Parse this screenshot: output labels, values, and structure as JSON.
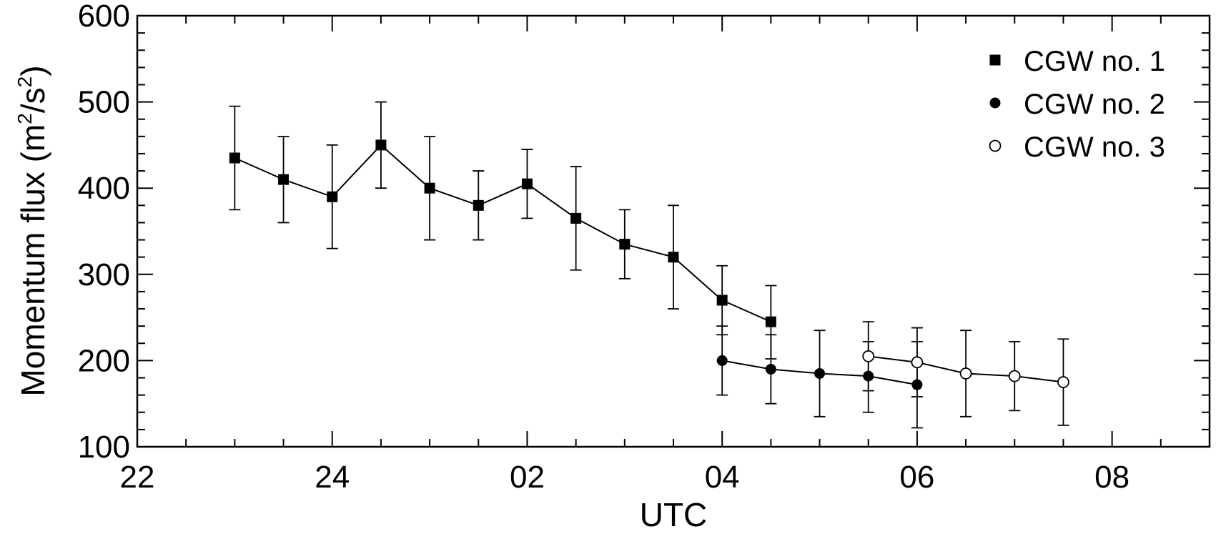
{
  "chart_data": {
    "type": "line",
    "xlabel": "UTC",
    "ylabel_main": "Momentum flux (m",
    "ylabel_sup1": "2",
    "ylabel_mid": "/s",
    "ylabel_sup2": "2",
    "ylabel_end": ")",
    "x_hours_since_22": true,
    "xlim": [
      0,
      11
    ],
    "ylim": [
      100,
      600
    ],
    "x_ticks": [
      {
        "value": 0,
        "label": "22"
      },
      {
        "value": 2,
        "label": "24"
      },
      {
        "value": 4,
        "label": "02"
      },
      {
        "value": 6,
        "label": "04"
      },
      {
        "value": 8,
        "label": "06"
      },
      {
        "value": 10,
        "label": "08"
      }
    ],
    "y_ticks": [
      {
        "value": 100,
        "label": "100"
      },
      {
        "value": 200,
        "label": "200"
      },
      {
        "value": 300,
        "label": "300"
      },
      {
        "value": 400,
        "label": "400"
      },
      {
        "value": 500,
        "label": "500"
      },
      {
        "value": 600,
        "label": "600"
      }
    ],
    "legend_position": "top-right",
    "series": [
      {
        "name": "CGW no. 1",
        "marker": "filled-square",
        "points": [
          {
            "x": 1.0,
            "y": 435,
            "lo": 375,
            "hi": 495
          },
          {
            "x": 1.5,
            "y": 410,
            "lo": 360,
            "hi": 460
          },
          {
            "x": 2.0,
            "y": 390,
            "lo": 330,
            "hi": 450
          },
          {
            "x": 2.5,
            "y": 450,
            "lo": 400,
            "hi": 500
          },
          {
            "x": 3.0,
            "y": 400,
            "lo": 340,
            "hi": 460
          },
          {
            "x": 3.5,
            "y": 380,
            "lo": 340,
            "hi": 420
          },
          {
            "x": 4.0,
            "y": 405,
            "lo": 365,
            "hi": 445
          },
          {
            "x": 4.5,
            "y": 365,
            "lo": 305,
            "hi": 425
          },
          {
            "x": 5.0,
            "y": 335,
            "lo": 295,
            "hi": 375
          },
          {
            "x": 5.5,
            "y": 320,
            "lo": 260,
            "hi": 380
          },
          {
            "x": 6.0,
            "y": 270,
            "lo": 230,
            "hi": 310
          },
          {
            "x": 6.5,
            "y": 245,
            "lo": 202,
            "hi": 287
          }
        ]
      },
      {
        "name": "CGW no. 2",
        "marker": "filled-circle",
        "points": [
          {
            "x": 6.0,
            "y": 200,
            "lo": 160,
            "hi": 240
          },
          {
            "x": 6.5,
            "y": 190,
            "lo": 150,
            "hi": 230
          },
          {
            "x": 7.0,
            "y": 185,
            "lo": 135,
            "hi": 235
          },
          {
            "x": 7.5,
            "y": 182,
            "lo": 140,
            "hi": 222
          },
          {
            "x": 8.0,
            "y": 172,
            "lo": 122,
            "hi": 222
          }
        ]
      },
      {
        "name": "CGW no. 3",
        "marker": "open-circle",
        "points": [
          {
            "x": 7.5,
            "y": 205,
            "lo": 165,
            "hi": 245
          },
          {
            "x": 8.0,
            "y": 198,
            "lo": 158,
            "hi": 238
          },
          {
            "x": 8.5,
            "y": 185,
            "lo": 135,
            "hi": 235
          },
          {
            "x": 9.0,
            "y": 182,
            "lo": 142,
            "hi": 222
          },
          {
            "x": 9.5,
            "y": 175,
            "lo": 125,
            "hi": 225
          }
        ]
      }
    ],
    "colors": {
      "line": "#000000",
      "background": "#ffffff"
    }
  }
}
